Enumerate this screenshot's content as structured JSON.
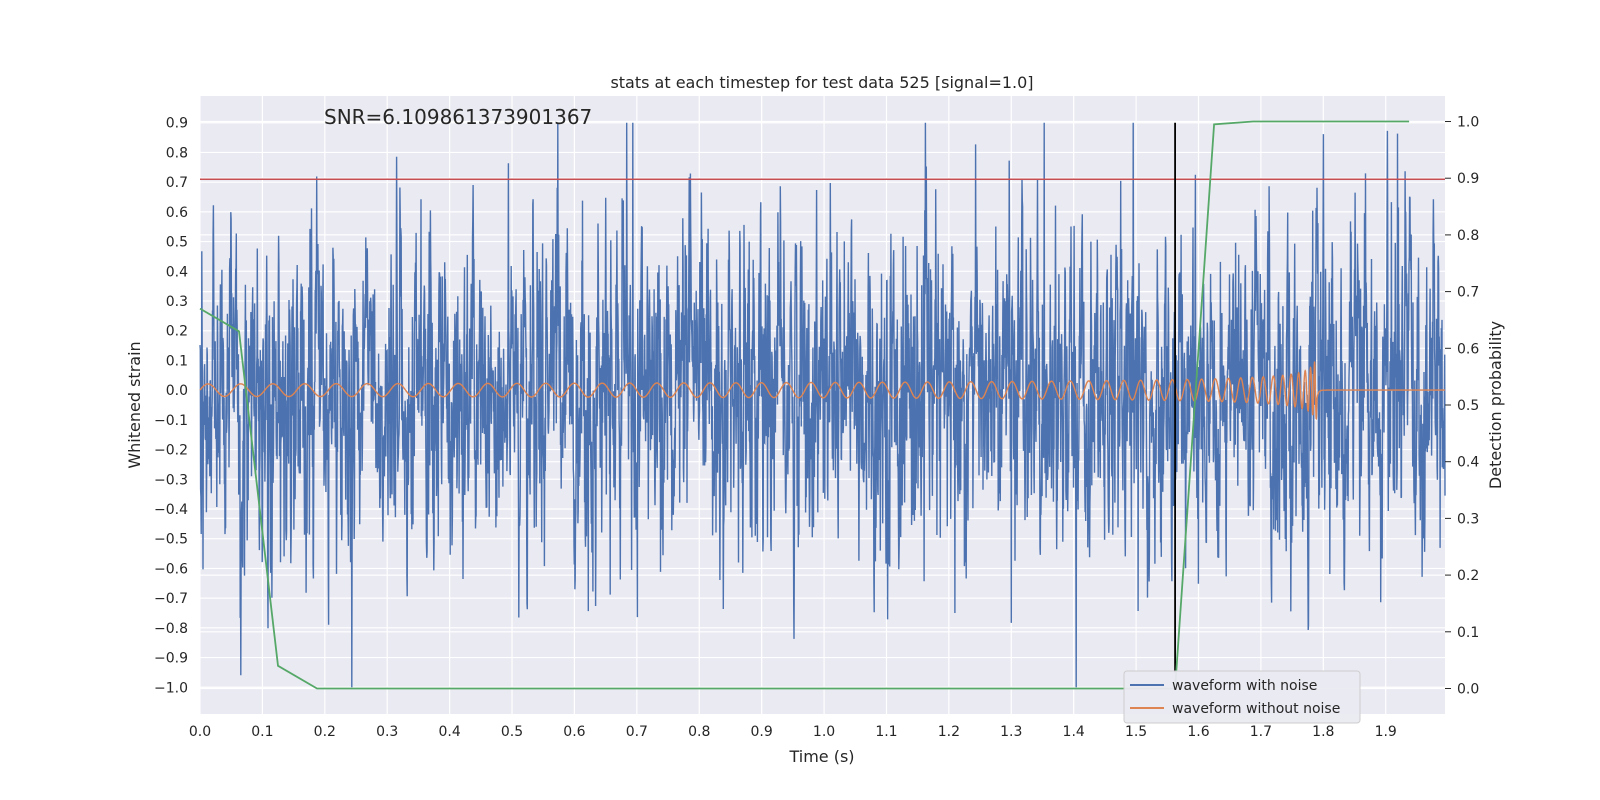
{
  "chart_data": {
    "type": "line",
    "title": "stats at each timestep for test data 525 [signal=1.0]",
    "xlabel": "Time (s)",
    "ylabel": "Whitened strain",
    "ylabel_right": "Detection probability",
    "annotation": "SNR=6.109861373901367",
    "xlim": [
      0.0,
      1.995
    ],
    "ylim": [
      -1.09,
      0.99
    ],
    "ylim_right": [
      -0.045,
      1.045
    ],
    "x_ticks": [
      "0.0",
      "0.1",
      "0.2",
      "0.3",
      "0.4",
      "0.5",
      "0.6",
      "0.7",
      "0.8",
      "0.9",
      "1.0",
      "1.1",
      "1.2",
      "1.3",
      "1.4",
      "1.5",
      "1.6",
      "1.7",
      "1.8",
      "1.9"
    ],
    "y_ticks": [
      "0.9",
      "0.8",
      "0.7",
      "0.6",
      "0.5",
      "0.4",
      "0.3",
      "0.2",
      "0.1",
      "0.0",
      "−0.1",
      "−0.2",
      "−0.3",
      "−0.4",
      "−0.5",
      "−0.6",
      "−0.7",
      "−0.8",
      "−0.9",
      "−1.0"
    ],
    "y_ticks_right": [
      "1.0",
      "0.9",
      "0.8",
      "0.7",
      "0.6",
      "0.5",
      "0.4",
      "0.3",
      "0.2",
      "0.1",
      "0.0"
    ],
    "grid": true,
    "legend_position": "lower-right",
    "series": [
      {
        "name": "waveform with noise",
        "color": "#4c72b0",
        "axis": "left",
        "sampling_rate_hz": 2048,
        "x_range": [
          0.0,
          1.995
        ],
        "envelope_range": [
          -1.0,
          0.9
        ]
      },
      {
        "name": "waveform without noise",
        "color": "#dd8452",
        "axis": "left",
        "kind": "chirp",
        "merger_time": 1.79,
        "peak_amplitude": 0.19
      }
    ],
    "detection_probability": {
      "color": "#55a868",
      "axis": "right",
      "x": [
        0.0,
        0.0625,
        0.125,
        0.1875,
        0.25,
        1.5,
        1.5625,
        1.625,
        1.6875,
        1.75,
        1.875,
        1.9375
      ],
      "y": [
        0.67,
        0.63,
        0.04,
        0.0,
        0.0,
        0.0,
        0.0,
        0.995,
        1.0,
        1.0,
        1.0,
        1.0
      ]
    },
    "threshold_line": {
      "y": 0.71,
      "color": "#c44e52",
      "axis": "left"
    },
    "vertical_line": {
      "x": 1.5625,
      "y_range": [
        -0.95,
        0.9
      ],
      "color": "#000000",
      "axis": "left"
    }
  }
}
